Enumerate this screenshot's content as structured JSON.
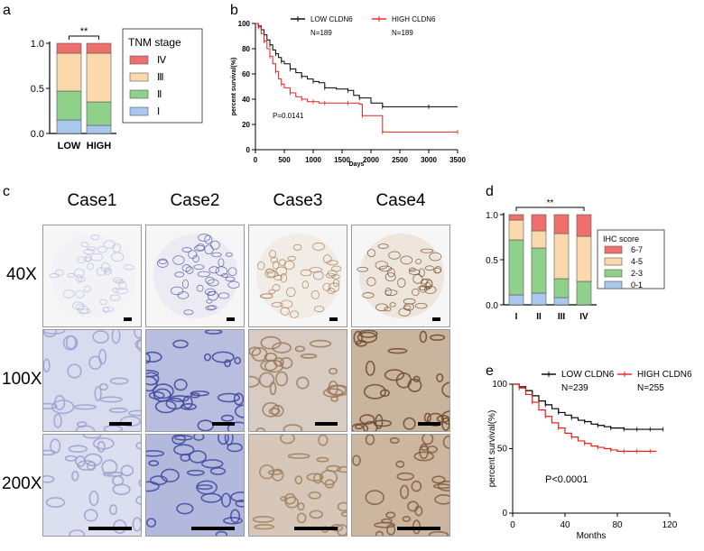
{
  "panels": {
    "a": "a",
    "b": "b",
    "c": "c",
    "d": "d",
    "e": "e"
  },
  "colors": {
    "stage_IV": "#ef6f6c",
    "stage_III": "#fbd9ad",
    "stage_II": "#8fd08a",
    "stage_I": "#a9c8ee",
    "low": "#000000",
    "high": "#e8201c"
  },
  "chart_data": [
    {
      "id": "a",
      "type": "bar",
      "stacked": true,
      "categories": [
        "LOW",
        "HIGH"
      ],
      "series": [
        {
          "name": "Ⅰ",
          "values": [
            0.15,
            0.09
          ]
        },
        {
          "name": "Ⅱ",
          "values": [
            0.32,
            0.26
          ]
        },
        {
          "name": "Ⅲ",
          "values": [
            0.42,
            0.54
          ]
        },
        {
          "name": "Ⅳ",
          "values": [
            0.11,
            0.11
          ]
        }
      ],
      "ylim": [
        0,
        1.0
      ],
      "yticks": [
        "0.0",
        "0.5",
        "1.0"
      ],
      "legend_title": "TNM stage",
      "legend_labels": [
        "Ⅳ",
        "Ⅲ",
        "Ⅱ",
        "Ⅰ"
      ],
      "significance": "**"
    },
    {
      "id": "b",
      "type": "line",
      "xlabel": "Days",
      "ylabel": "percent survival(%)",
      "xlim": [
        0,
        3500
      ],
      "ylim": [
        0,
        100
      ],
      "xticks": [
        "0",
        "500",
        "1000",
        "1500",
        "2000",
        "2500",
        "3000",
        "3500"
      ],
      "yticks": [
        "0",
        "20",
        "40",
        "60",
        "80",
        "100"
      ],
      "pvalue": "P=0.0141",
      "series": [
        {
          "name": "LOW CLDN6",
          "n": "N=189",
          "x": [
            0,
            50,
            100,
            150,
            200,
            250,
            300,
            350,
            400,
            450,
            500,
            600,
            700,
            800,
            900,
            1000,
            1100,
            1200,
            1400,
            1600,
            1700,
            1800,
            2000,
            2200,
            2500,
            3000,
            3500
          ],
          "y": [
            100,
            98,
            95,
            91,
            87,
            83,
            79,
            76,
            73,
            70,
            68,
            64,
            61,
            58,
            56,
            54,
            53,
            49,
            48,
            47,
            43,
            41,
            37,
            34,
            34,
            34,
            34
          ]
        },
        {
          "name": "HIGH CLDN6",
          "n": "N=189",
          "x": [
            0,
            50,
            100,
            150,
            200,
            250,
            300,
            350,
            400,
            450,
            500,
            600,
            700,
            800,
            900,
            1000,
            1100,
            1200,
            1400,
            1600,
            1800,
            1850,
            2100,
            2200,
            3000,
            3500
          ],
          "y": [
            100,
            97,
            92,
            86,
            80,
            74,
            68,
            62,
            56,
            52,
            49,
            45,
            42,
            40,
            38,
            38,
            37,
            37,
            37,
            37,
            36,
            27,
            27,
            14,
            14,
            14
          ]
        }
      ]
    },
    {
      "id": "d",
      "type": "bar",
      "stacked": true,
      "categories": [
        "I",
        "II",
        "III",
        "IV"
      ],
      "series": [
        {
          "name": "0-1",
          "values": [
            0.11,
            0.13,
            0.08,
            0.0
          ]
        },
        {
          "name": "2-3",
          "values": [
            0.61,
            0.5,
            0.21,
            0.26
          ]
        },
        {
          "name": "4-5",
          "values": [
            0.22,
            0.19,
            0.5,
            0.5
          ]
        },
        {
          "name": "6-7",
          "values": [
            0.06,
            0.18,
            0.21,
            0.24
          ]
        }
      ],
      "ylim": [
        0,
        1.0
      ],
      "yticks": [
        "0.0",
        "0.5",
        "1.0"
      ],
      "legend_title": "IHC score",
      "legend_labels": [
        "6-7",
        "4-5",
        "2-3",
        "0-1"
      ],
      "significance": "**"
    },
    {
      "id": "e",
      "type": "line",
      "xlabel": "Months",
      "ylabel": "percent survival(%)",
      "xlim": [
        0,
        120
      ],
      "ylim": [
        0,
        100
      ],
      "xticks": [
        "0",
        "40",
        "80",
        "120"
      ],
      "yticks": [
        "0",
        "50",
        "100"
      ],
      "pvalue": "P<0.0001",
      "series": [
        {
          "name": "LOW CLDN6",
          "n": "N=239",
          "x": [
            0,
            5,
            10,
            15,
            20,
            25,
            30,
            35,
            40,
            45,
            50,
            55,
            60,
            65,
            70,
            75,
            80,
            85,
            90,
            95,
            100,
            105,
            110,
            115
          ],
          "y": [
            100,
            98,
            95,
            91,
            87,
            84,
            81,
            78,
            76,
            74,
            72,
            71,
            69,
            68,
            67,
            66,
            66,
            65,
            65,
            65,
            65,
            65,
            65,
            65
          ]
        },
        {
          "name": "HIGH CLDN6",
          "n": "N=255",
          "x": [
            0,
            5,
            10,
            15,
            20,
            25,
            30,
            35,
            40,
            45,
            50,
            55,
            60,
            65,
            70,
            75,
            80,
            85,
            90,
            95,
            100,
            105,
            110
          ],
          "y": [
            100,
            97,
            92,
            86,
            80,
            75,
            70,
            66,
            62,
            59,
            56,
            54,
            52,
            51,
            50,
            49,
            48,
            48,
            48,
            48,
            48,
            48,
            48
          ]
        }
      ]
    }
  ],
  "histology": {
    "cases": [
      "Case1",
      "Case2",
      "Case3",
      "Case4"
    ],
    "magnifications": [
      "40X",
      "100X",
      "200X"
    ]
  }
}
